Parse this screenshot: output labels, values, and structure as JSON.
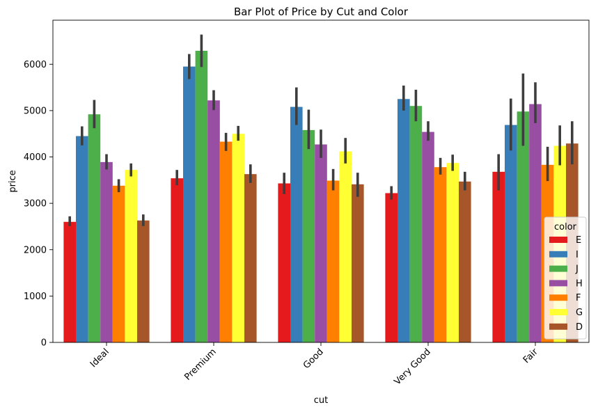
{
  "chart_data": {
    "type": "bar",
    "title": "Bar Plot of Price by Cut and Color",
    "xlabel": "cut",
    "ylabel": "price",
    "categories": [
      "Ideal",
      "Premium",
      "Good",
      "Very Good",
      "Fair"
    ],
    "ylim": [
      0,
      6950
    ],
    "yticks": [
      0,
      1000,
      2000,
      3000,
      4000,
      5000,
      6000
    ],
    "ytick_labels": [
      "0",
      "1000",
      "2000",
      "3000",
      "4000",
      "5000",
      "6000"
    ],
    "grid": false,
    "error_bars": true,
    "legend": {
      "title": "color",
      "placement": "lower-right"
    },
    "series": [
      {
        "name": "E",
        "color": "#e41a1c",
        "values": [
          2600,
          3540,
          3430,
          3220,
          3680
        ],
        "ci_low": [
          2510,
          3390,
          3200,
          3080,
          3280
        ],
        "ci_high": [
          2720,
          3720,
          3660,
          3370,
          4060
        ]
      },
      {
        "name": "I",
        "color": "#377eb8",
        "values": [
          4450,
          5950,
          5080,
          5250,
          4690
        ],
        "ci_low": [
          4250,
          5680,
          4690,
          5000,
          4140
        ],
        "ci_high": [
          4660,
          6220,
          5500,
          5540,
          5260
        ]
      },
      {
        "name": "J",
        "color": "#4daf4a",
        "values": [
          4920,
          6290,
          4580,
          5100,
          4980
        ],
        "ci_low": [
          4620,
          5940,
          4170,
          4770,
          4240
        ],
        "ci_high": [
          5230,
          6640,
          5020,
          5450,
          5800
        ]
      },
      {
        "name": "H",
        "color": "#984ea3",
        "values": [
          3890,
          5220,
          4270,
          4540,
          5140
        ],
        "ci_low": [
          3730,
          5010,
          3980,
          4350,
          4730
        ],
        "ci_high": [
          4060,
          5440,
          4590,
          4770,
          5610
        ]
      },
      {
        "name": "F",
        "color": "#ff7f00",
        "values": [
          3380,
          4330,
          3490,
          3780,
          3830
        ],
        "ci_low": [
          3240,
          4130,
          3280,
          3620,
          3480
        ],
        "ci_high": [
          3520,
          4520,
          3740,
          3980,
          4220
        ]
      },
      {
        "name": "G",
        "color": "#ffff33",
        "values": [
          3720,
          4500,
          4120,
          3870,
          4240
        ],
        "ci_low": [
          3580,
          4350,
          3860,
          3700,
          3820
        ],
        "ci_high": [
          3860,
          4670,
          4410,
          4050,
          4680
        ]
      },
      {
        "name": "D",
        "color": "#a65628",
        "values": [
          2630,
          3630,
          3410,
          3470,
          4290
        ],
        "ci_low": [
          2510,
          3440,
          3140,
          3280,
          3840
        ],
        "ci_high": [
          2760,
          3840,
          3660,
          3680,
          4770
        ]
      }
    ]
  }
}
